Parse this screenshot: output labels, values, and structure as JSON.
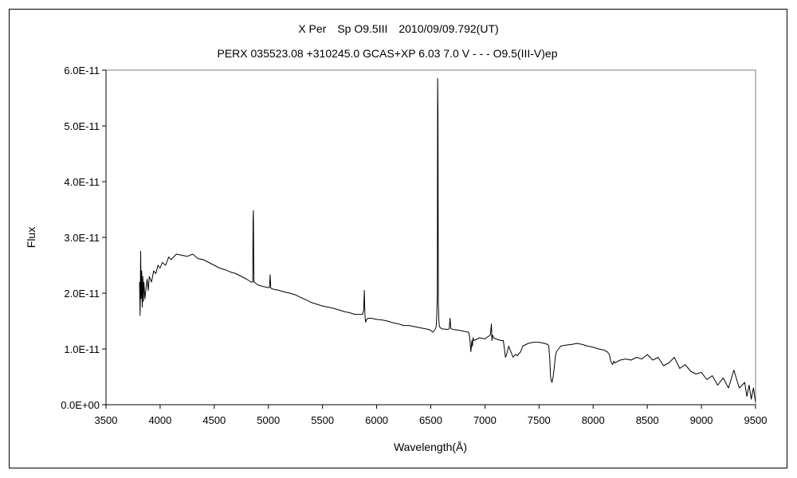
{
  "chart_data": {
    "type": "line",
    "title": "X Per　Sp O9.5III　2010/09/09.792(UT)",
    "subtitle": "PERX 035523.08 +310245.0 GCAS+XP 6.03 7.0 V - - - O9.5(III-V)ep",
    "xlabel": "Wavelength(Å)",
    "ylabel": "Flux",
    "xlim": [
      3500,
      9500
    ],
    "ylim": [
      0,
      6e-11
    ],
    "x_ticks": [
      "3500",
      "4000",
      "4500",
      "5000",
      "5500",
      "6000",
      "6500",
      "7000",
      "7500",
      "8000",
      "8500",
      "9000",
      "9500"
    ],
    "y_ticks": [
      "0.0E+00",
      "1.0E-11",
      "2.0E-11",
      "3.0E-11",
      "4.0E-11",
      "5.0E-11",
      "6.0E-11"
    ],
    "grid": false,
    "legend": "none",
    "line_color": "#000000",
    "series": [
      {
        "x": [
          3810,
          3815,
          3820,
          3825,
          3830,
          3835,
          3840,
          3845,
          3850,
          3860,
          3870,
          3880,
          3890,
          3900,
          3920,
          3940,
          3960,
          3980,
          4000,
          4020,
          4050,
          4080,
          4100,
          4150,
          4200,
          4250,
          4300,
          4350,
          4400,
          4450,
          4500,
          4550,
          4600,
          4650,
          4700,
          4750,
          4800,
          4840,
          4855,
          4858,
          4861,
          4864,
          4867,
          4880,
          4900,
          4950,
          5000,
          5010,
          5016,
          5022,
          5030,
          5050,
          5100,
          5150,
          5200,
          5250,
          5300,
          5350,
          5400,
          5450,
          5500,
          5550,
          5600,
          5650,
          5700,
          5750,
          5800,
          5850,
          5870,
          5880,
          5886,
          5892,
          5898,
          5905,
          5920,
          5950,
          6000,
          6050,
          6100,
          6150,
          6200,
          6250,
          6300,
          6350,
          6400,
          6450,
          6480,
          6500,
          6520,
          6540,
          6550,
          6555,
          6560,
          6563,
          6566,
          6570,
          6575,
          6580,
          6590,
          6600,
          6650,
          6670,
          6678,
          6685,
          6700,
          6750,
          6800,
          6850,
          6860,
          6870,
          6880,
          6885,
          6890,
          6900,
          6950,
          7000,
          7050,
          7060,
          7065,
          7070,
          7080,
          7100,
          7150,
          7170,
          7180,
          7190,
          7200,
          7220,
          7240,
          7260,
          7280,
          7300,
          7330,
          7350,
          7400,
          7450,
          7500,
          7550,
          7580,
          7590,
          7600,
          7605,
          7610,
          7620,
          7630,
          7640,
          7650,
          7660,
          7680,
          7700,
          7750,
          7800,
          7850,
          7900,
          7950,
          8000,
          8050,
          8100,
          8130,
          8150,
          8160,
          8170,
          8180,
          8190,
          8200,
          8250,
          8300,
          8350,
          8400,
          8450,
          8500,
          8550,
          8600,
          8650,
          8700,
          8750,
          8800,
          8850,
          8900,
          8950,
          9000,
          9050,
          9100,
          9150,
          9200,
          9250,
          9300,
          9350,
          9400,
          9420,
          9440,
          9460,
          9480,
          9500
        ],
        "y": [
          2.2e-11,
          1.6e-11,
          2.75e-11,
          1.9e-11,
          2.4e-11,
          1.75e-11,
          2.3e-11,
          1.85e-11,
          2.2e-11,
          1.9e-11,
          2.1e-11,
          2.25e-11,
          2.05e-11,
          2.3e-11,
          2.2e-11,
          2.4e-11,
          2.35e-11,
          2.5e-11,
          2.45e-11,
          2.55e-11,
          2.5e-11,
          2.65e-11,
          2.6e-11,
          2.7e-11,
          2.68e-11,
          2.66e-11,
          2.7e-11,
          2.62e-11,
          2.6e-11,
          2.55e-11,
          2.5e-11,
          2.45e-11,
          2.42e-11,
          2.38e-11,
          2.35e-11,
          2.3e-11,
          2.25e-11,
          2.2e-11,
          2.2e-11,
          3.3e-11,
          3.48e-11,
          2.7e-11,
          2.2e-11,
          2.18e-11,
          2.15e-11,
          2.12e-11,
          2.1e-11,
          2.1e-11,
          2.33e-11,
          2.1e-11,
          2.08e-11,
          2.07e-11,
          2.05e-11,
          2.02e-11,
          2e-11,
          1.97e-11,
          1.92e-11,
          1.88e-11,
          1.83e-11,
          1.8e-11,
          1.77e-11,
          1.75e-11,
          1.73e-11,
          1.7e-11,
          1.67e-11,
          1.65e-11,
          1.62e-11,
          1.62e-11,
          1.62e-11,
          1.7e-11,
          2.05e-11,
          1.6e-11,
          1.48e-11,
          1.52e-11,
          1.55e-11,
          1.55e-11,
          1.53e-11,
          1.52e-11,
          1.5e-11,
          1.47e-11,
          1.45e-11,
          1.42e-11,
          1.42e-11,
          1.4e-11,
          1.38e-11,
          1.36e-11,
          1.35e-11,
          1.33e-11,
          1.3e-11,
          1.35e-11,
          1.4e-11,
          1.6e-11,
          2e-11,
          5.85e-11,
          5.3e-11,
          1.8e-11,
          1.5e-11,
          1.4e-11,
          1.38e-11,
          1.36e-11,
          1.35e-11,
          1.36e-11,
          1.55e-11,
          1.37e-11,
          1.35e-11,
          1.34e-11,
          1.32e-11,
          1.3e-11,
          1.2e-11,
          9.5e-12,
          1.15e-11,
          1.05e-11,
          1.2e-11,
          1.15e-11,
          1.2e-11,
          1.18e-11,
          1.25e-11,
          1.45e-11,
          1.15e-11,
          1.25e-11,
          1.2e-11,
          1.18e-11,
          1.15e-11,
          1.15e-11,
          1e-11,
          8.5e-12,
          9e-12,
          1.05e-11,
          9.5e-12,
          8.5e-12,
          9e-12,
          8.8e-12,
          9.5e-12,
          1.05e-11,
          1.1e-11,
          1.12e-11,
          1.12e-11,
          1.1e-11,
          1.08e-11,
          1.05e-11,
          8e-12,
          5.5e-12,
          4.5e-12,
          4e-12,
          5e-12,
          6.5e-12,
          8.5e-12,
          9.5e-12,
          1e-11,
          1.05e-11,
          1.07e-11,
          1.08e-11,
          1.1e-11,
          1.08e-11,
          1.05e-11,
          1.03e-11,
          1e-11,
          9.8e-12,
          9.5e-12,
          9e-12,
          8e-12,
          7.5e-12,
          7.2e-12,
          7.8e-12,
          7.5e-12,
          8e-12,
          8.2e-12,
          8e-12,
          8.5e-12,
          8.2e-12,
          9e-12,
          8e-12,
          8.5e-12,
          7e-12,
          7.5e-12,
          8.5e-12,
          6.5e-12,
          7.2e-12,
          6e-12,
          5.5e-12,
          5.8e-12,
          4.5e-12,
          5.2e-12,
          3.5e-12,
          4.8e-12,
          3e-12,
          6.2e-12,
          3e-12,
          4e-12,
          1.5e-12,
          3.5e-12,
          1e-12,
          3e-12,
          5e-13
        ]
      }
    ]
  }
}
